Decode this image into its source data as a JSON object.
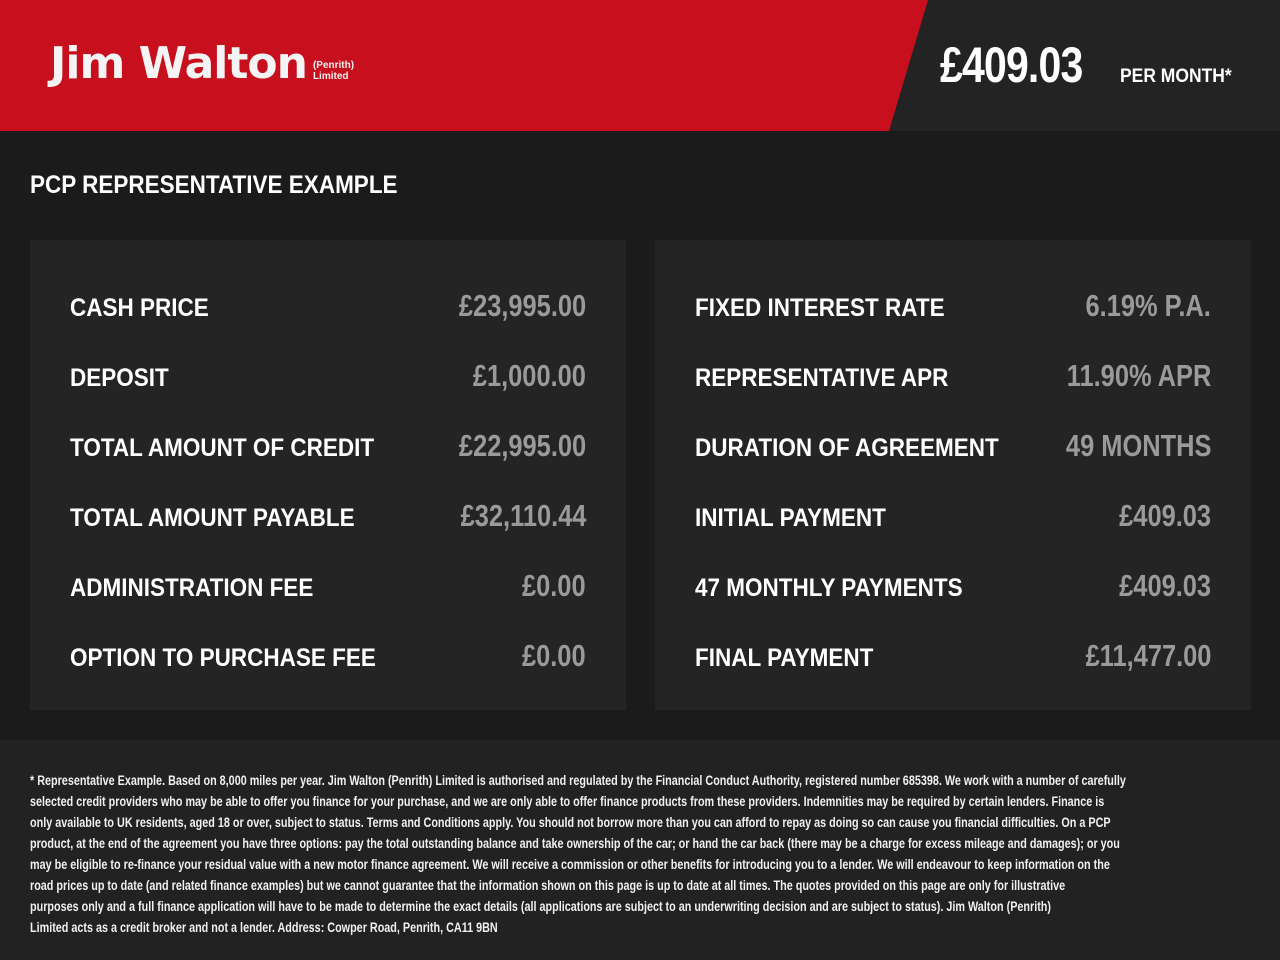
{
  "header": {
    "brand": "Jim Walton",
    "brand_sub_1": "(Penrith)",
    "brand_sub_2": "Limited",
    "monthly_price": "£409.03",
    "per_month": "PER MONTH*",
    "brand_color": "#c80f1e"
  },
  "title": "PCP REPRESENTATIVE EXAMPLE",
  "left": [
    {
      "label": "CASH PRICE",
      "value": "£23,995.00"
    },
    {
      "label": "DEPOSIT",
      "value": "£1,000.00"
    },
    {
      "label": "TOTAL AMOUNT OF CREDIT",
      "value": "£22,995.00"
    },
    {
      "label": "TOTAL AMOUNT PAYABLE",
      "value": "£32,110.44"
    },
    {
      "label": "ADMINISTRATION FEE",
      "value": "£0.00"
    },
    {
      "label": "OPTION TO PURCHASE FEE",
      "value": "£0.00"
    }
  ],
  "right": [
    {
      "label": "FIXED INTEREST RATE",
      "value": "6.19% P.A."
    },
    {
      "label": "REPRESENTATIVE APR",
      "value": "11.90% APR"
    },
    {
      "label": "DURATION OF AGREEMENT",
      "value": "49 MONTHS"
    },
    {
      "label": "INITIAL PAYMENT",
      "value": "£409.03"
    },
    {
      "label": "47 MONTHLY PAYMENTS",
      "value": "£409.03"
    },
    {
      "label": "FINAL PAYMENT",
      "value": "£11,477.00"
    }
  ],
  "disclaimer": [
    "* Representative Example. Based on 8,000 miles per year. Jim Walton (Penrith) Limited is authorised and regulated by the Financial Conduct Authority, registered number 685398. We work with a number of carefully",
    "selected credit providers who may be able to offer you finance for your purchase, and we are only able to offer finance products from these providers. Indemnities may be required by certain lenders. Finance is",
    "only available to UK residents, aged 18 or over, subject to status. Terms and Conditions apply. You should not borrow more than you can afford to repay as doing so can cause you financial difficulties. On a PCP",
    "product, at the end of the agreement you have three options: pay the total outstanding balance and take ownership of the car; or hand the car back (there may be a charge for excess mileage and damages); or you",
    "may be eligible to re-finance your residual value with a new motor finance agreement. We will receive a commission or other benefits for introducing you to a lender. We will endeavour to keep information on the",
    "road prices up to date (and related finance examples) but we cannot guarantee that the information shown on this page is up to date at all times. The quotes provided on this page are only for illustrative",
    "purposes only and a full finance application will have to be made to determine the exact details (all applications are subject to an underwriting decision and are subject to status). Jim Walton (Penrith)",
    "Limited acts as a credit broker and not a lender. Address: Cowper Road, Penrith, CA11 9BN"
  ]
}
